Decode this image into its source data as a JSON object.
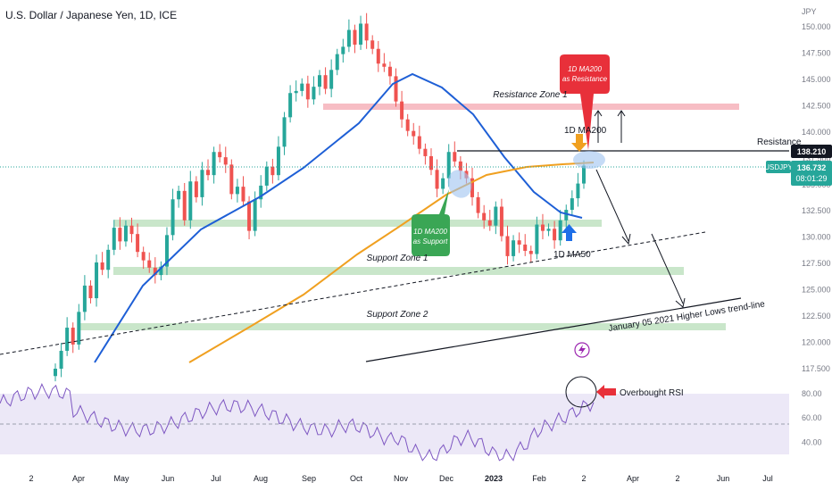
{
  "title": "U.S. Dollar / Japanese Yen, 1D, ICE",
  "axis": {
    "currency": "JPY",
    "price_ticks": [
      "150.000",
      "147.500",
      "145.000",
      "142.500",
      "140.000",
      "137.500",
      "135.000",
      "132.500",
      "130.000",
      "127.500",
      "125.000",
      "122.500",
      "120.000",
      "117.500"
    ],
    "rsi_ticks": [
      "80.00",
      "60.00",
      "40.00"
    ],
    "time_ticks": [
      "2",
      "Apr",
      "May",
      "Jun",
      "Jul",
      "Aug",
      "Sep",
      "Oct",
      "Nov",
      "Dec",
      "2023",
      "Feb",
      "2",
      "Apr",
      "2",
      "Jun",
      "Jul"
    ]
  },
  "price_labels": {
    "resistance_value": "138.210",
    "symbol": "USDJPY",
    "last_price": "136.732",
    "countdown": "08:01:29"
  },
  "annotations": {
    "resistance_zone": "Resistance Zone 1",
    "resistance": "Resistance",
    "ma200_top": "1D MA200",
    "ma200_res_1": "1D MA200",
    "ma200_res_2": "as Resistance",
    "ma200_sup_1": "1D MA200",
    "ma200_sup_2": "as Support",
    "support_zone_1": "Support Zone 1",
    "support_zone_2": "Support Zone 2",
    "ma50": "1D MA50",
    "trendline": "January 05 2021 Higher Lows trend-line",
    "rsi": "Overbought RSI"
  },
  "colors": {
    "ma50": "#1e5fd6",
    "ma200": "#f0a020",
    "up": "#26a69a",
    "down": "#ef5350",
    "rsi": "#7e57c2",
    "rsi_band": "#ece8f7",
    "support_zone": "#a5d6a7",
    "resistance_zone": "#f4a7b0",
    "callout_red": "#e8303a",
    "callout_green": "#3aa655",
    "axis_tag": "#26a69a",
    "price_tag_dark": "#131722"
  },
  "chart_data": {
    "type": "candlestick",
    "y_range": [
      116.5,
      152
    ],
    "rsi_range": [
      23,
      91
    ],
    "resistance_level": 138.21,
    "last_price": 136.732,
    "zones": {
      "resistance_zone_1": [
        142.1,
        142.6
      ],
      "support_zone_1_upper": [
        131.2,
        131.7
      ],
      "support_zone_1_lower": [
        126.7,
        127.3
      ],
      "support_zone_2": [
        121.6,
        122.2
      ]
    },
    "close": [
      117.5,
      119.2,
      121.4,
      119.8,
      122.9,
      125.4,
      124.2,
      127.6,
      126.9,
      128.8,
      130.9,
      129.6,
      131.1,
      130.3,
      128.6,
      127.8,
      127.1,
      126.4,
      127.2,
      130.2,
      133.6,
      134.4,
      131.6,
      135.3,
      133.8,
      136.4,
      135.9,
      138.1,
      137.6,
      136.9,
      134.1,
      134.8,
      133.4,
      130.6,
      133.6,
      134.9,
      136.7,
      135.9,
      138.6,
      141.4,
      143.7,
      143.9,
      144.6,
      143.1,
      144.3,
      145.4,
      144.1,
      145.9,
      147.4,
      148.1,
      149.7,
      148.3,
      150.3,
      148.7,
      147.9,
      146.5,
      146.2,
      145.3,
      142.9,
      141.2,
      140.1,
      139.6,
      138.4,
      137.7,
      136.4,
      134.6,
      135.6,
      138.1,
      137.2,
      136.3,
      135.6,
      133.8,
      132.3,
      131.6,
      131.1,
      132.9,
      130.1,
      128.2,
      129.7,
      129.3,
      128.7,
      128.4,
      131.2,
      130.6,
      130.8,
      129.7,
      131.6,
      132.6,
      133.7,
      135.1,
      136.8
    ]
  }
}
